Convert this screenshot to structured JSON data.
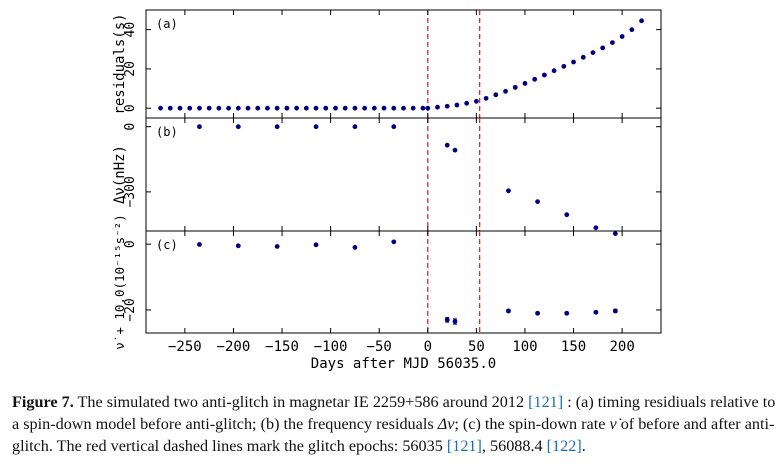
{
  "chart_data": [
    {
      "type": "scatter",
      "panel_label": "(a)",
      "ylabel": "residuals(s)",
      "y_ticks": [
        0,
        20,
        40
      ],
      "ylim": [
        -5,
        50
      ],
      "xlim": [
        -290,
        240
      ],
      "color": "#00007f",
      "x": [
        -275,
        -265,
        -255,
        -245,
        -235,
        -225,
        -215,
        -205,
        -195,
        -185,
        -175,
        -165,
        -155,
        -145,
        -135,
        -125,
        -115,
        -105,
        -95,
        -85,
        -75,
        -65,
        -55,
        -45,
        -35,
        -25,
        -15,
        -5,
        0,
        10,
        20,
        30,
        40,
        50,
        60,
        70,
        80,
        90,
        100,
        110,
        120,
        130,
        140,
        150,
        160,
        170,
        180,
        190,
        200,
        210,
        220
      ],
      "y": [
        0,
        0,
        0,
        0,
        0,
        0,
        0,
        0,
        0,
        0,
        0,
        0,
        0,
        0,
        0,
        0,
        0,
        0,
        0,
        0,
        0,
        0,
        0,
        0,
        0,
        0,
        0,
        0,
        0,
        0.5,
        1,
        1.6,
        2.5,
        3.5,
        5,
        6.8,
        8.6,
        10.6,
        12.6,
        14.7,
        16.9,
        19.1,
        21.3,
        23.5,
        25.9,
        28.3,
        30.7,
        33.4,
        36.5,
        40,
        44.5
      ]
    },
    {
      "type": "scatter",
      "panel_label": "(b)",
      "ylabel": "Δν(nHz)",
      "y_ticks": [
        0,
        -300
      ],
      "ylim": [
        -480,
        40
      ],
      "xlim": [
        -290,
        240
      ],
      "color": "#00007f",
      "x": [
        -235,
        -195,
        -155,
        -115,
        -75,
        -35,
        20,
        28,
        83,
        113,
        143,
        173,
        193
      ],
      "y": [
        0,
        0,
        0,
        0,
        0,
        0,
        -85,
        -108,
        -295,
        -345,
        -405,
        -465,
        -492
      ]
    },
    {
      "type": "scatter",
      "panel_label": "(c)",
      "ylabel": "ν̇ + 10.0(10⁻¹⁵s⁻²)",
      "y_ticks": [
        0,
        -20
      ],
      "ylim": [
        -27,
        4
      ],
      "xlim": [
        -290,
        240
      ],
      "xlabel": "Days after MJD 56035.0",
      "x_ticks": [
        -250,
        -200,
        -150,
        -100,
        -50,
        0,
        50,
        100,
        150,
        200
      ],
      "color": "#00007f",
      "x": [
        -235,
        -195,
        -155,
        -115,
        -75,
        -35,
        20,
        28,
        83,
        113,
        143,
        173,
        193
      ],
      "y": [
        -0.1,
        -0.5,
        -0.7,
        -0.2,
        -1.0,
        0.7,
        -23.0,
        -23.5,
        -20.3,
        -21.0,
        -21.0,
        -20.7,
        -20.3
      ],
      "err": [
        0,
        0,
        0,
        0,
        0,
        0,
        0.7,
        0.8,
        0.4,
        0.3,
        0.3,
        0.3,
        0.5
      ]
    }
  ],
  "glitch_lines_x": [
    0,
    53.4
  ],
  "glitch_line_color": "#e0191b",
  "caption": {
    "label": "Figure 7.",
    "text1": " The simulated two anti-glitch in magnetar IE 2259+586 around 2012 ",
    "ref1": "[121]",
    "text2": " : (a) timing residiuals relative to a spin-down model before anti-glitch; (b) the frequency residuals ",
    "sym_dnu": "Δν",
    "text3": "; (c) the spin-down rate ",
    "sym_nudot": "ν̇",
    "text4": " of before and after anti-glitch. The red vertical dashed lines mark the glitch epochs: 56035 ",
    "ref2": "[121]",
    "text5": ", 56088.4 ",
    "ref3": "[122]",
    "text6": "."
  }
}
